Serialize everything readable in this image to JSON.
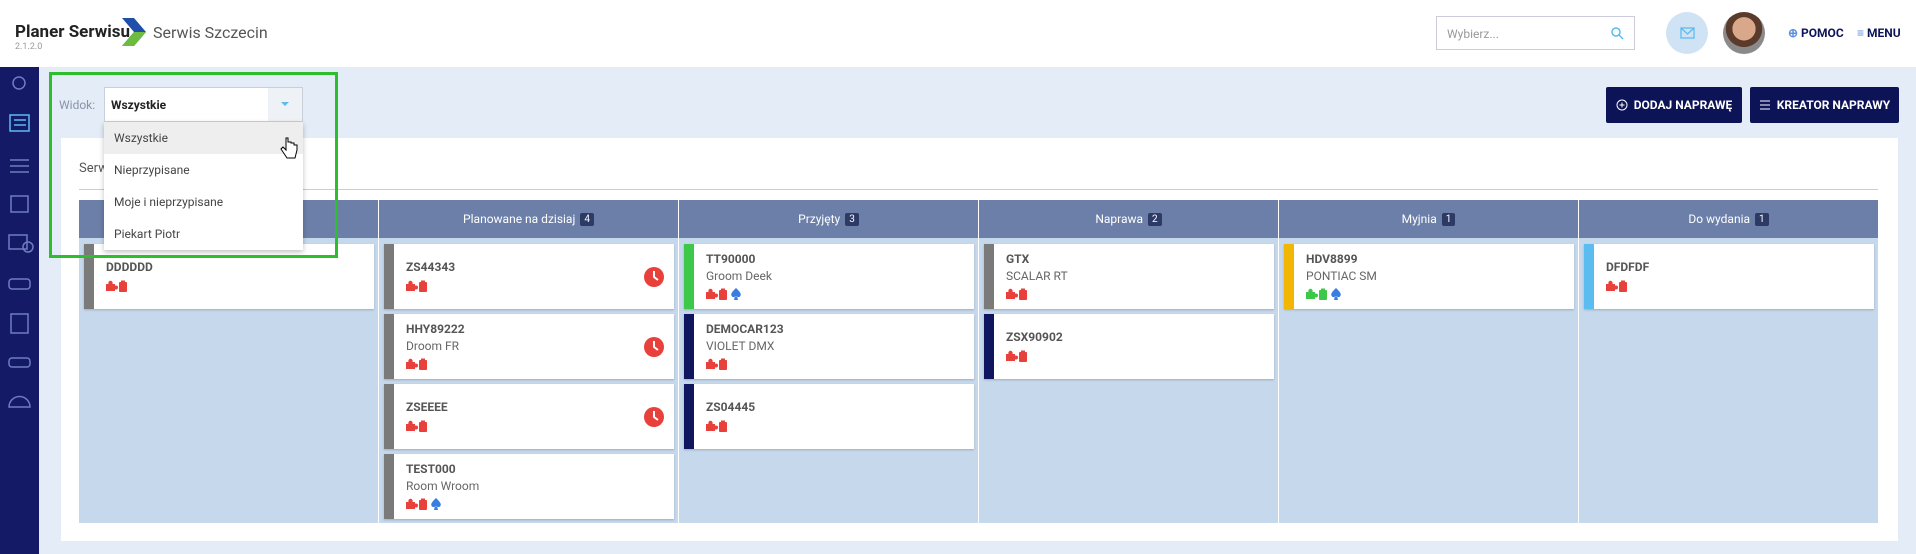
{
  "header": {
    "app_name": "Planer Serwisu",
    "version": "2.1.2.0",
    "location": "Serwis Szczecin",
    "search_placeholder": "Wybierz...",
    "help": "POMOC",
    "menu": "MENU"
  },
  "toolbar": {
    "view_label": "Widok:",
    "view_selected": "Wszystkie",
    "view_options": [
      "Wszystkie",
      "Nieprzypisane",
      "Moje i nieprzypisane",
      "Piekart Piotr"
    ],
    "buttons": [
      "DODAJ NAPRAWĘ",
      "KREATOR NAPRAWY"
    ]
  },
  "board": {
    "tab": "Serw",
    "columns": [
      {
        "cards": [
          {
            "plate": "DDDDDD",
            "color": "#7a7a7a",
            "icons": [
              "puzzle-red",
              "clip-red"
            ]
          }
        ]
      },
      {
        "title": "Planowane na dzisiaj",
        "count": "4",
        "cards": [
          {
            "plate": "ZS44343",
            "color": "#7a7a7a",
            "icons": [
              "puzzle-red",
              "clip-red"
            ],
            "clock": true
          },
          {
            "plate": "HHY89222",
            "model": "Droom FR",
            "color": "#7a7a7a",
            "icons": [
              "puzzle-red",
              "clip-red"
            ],
            "clock": true
          },
          {
            "plate": "ZSEEEE",
            "color": "#7a7a7a",
            "icons": [
              "puzzle-red",
              "clip-red"
            ],
            "clock": true
          },
          {
            "plate": "TEST000",
            "model": "Room Wroom",
            "color": "#7a7a7a",
            "icons": [
              "puzzle-red",
              "clip-red",
              "spade-blue"
            ]
          }
        ]
      },
      {
        "title": "Przyjęty",
        "count": "3",
        "cards": [
          {
            "plate": "TT90000",
            "model": "Groom Deek",
            "color": "#3ec84a",
            "icons": [
              "puzzle-red",
              "clip-red",
              "spade-blue"
            ]
          },
          {
            "plate": "DEMOCAR123",
            "model": "VIOLET DMX",
            "color": "#101560",
            "icons": [
              "puzzle-red",
              "clip-red"
            ]
          },
          {
            "plate": "ZS04445",
            "color": "#101560",
            "icons": [
              "puzzle-red",
              "clip-red"
            ]
          }
        ]
      },
      {
        "title": "Naprawa",
        "count": "2",
        "cards": [
          {
            "plate": "GTX",
            "model": "SCALAR RT",
            "color": "#7a7a7a",
            "icons": [
              "puzzle-red",
              "clip-red"
            ]
          },
          {
            "plate": "ZSX90902",
            "color": "#101560",
            "icons": [
              "puzzle-red",
              "clip-red"
            ]
          }
        ]
      },
      {
        "title": "Myjnia",
        "count": "1",
        "cards": [
          {
            "plate": "HDV8899",
            "model": "PONTIAC SM",
            "color": "#f2b705",
            "icons": [
              "puzzle-green",
              "clip-green",
              "spade-blue"
            ]
          }
        ]
      },
      {
        "title": "Do wydania",
        "count": "1",
        "cards": [
          {
            "plate": "DFDFDF",
            "color": "#5bbcf0",
            "icons": [
              "puzzle-red",
              "clip-red"
            ]
          }
        ]
      }
    ]
  }
}
